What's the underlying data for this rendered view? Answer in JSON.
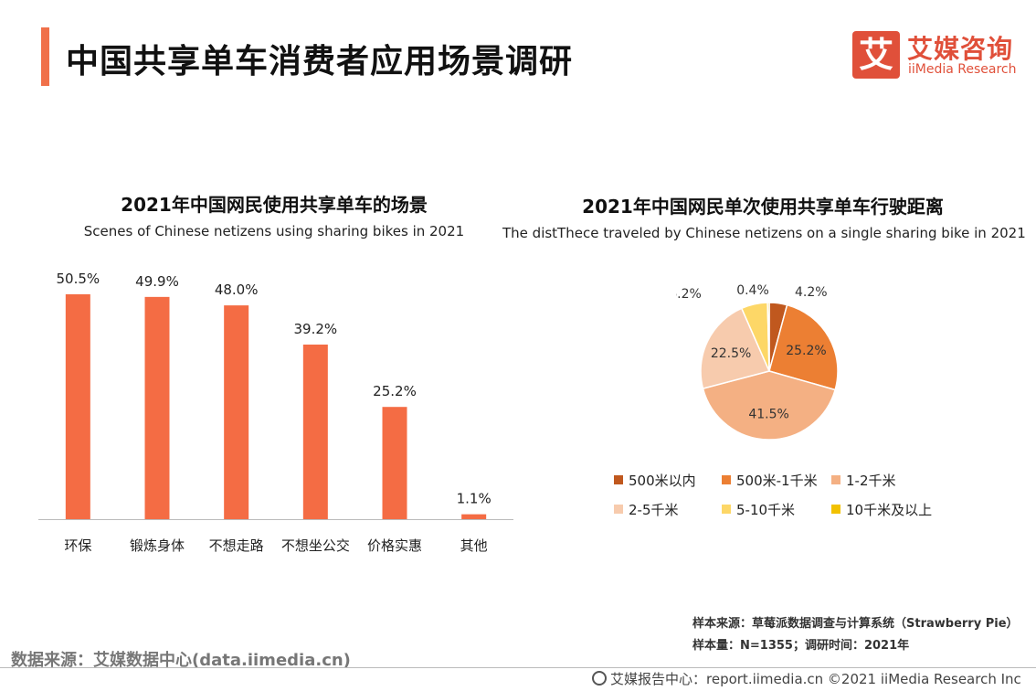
{
  "header": {
    "title": "中国共享单车消费者应用场景调研",
    "logo_mark": "艾",
    "logo_cn": "艾媒咨询",
    "logo_en": "iiMedia Research"
  },
  "colors": {
    "accent": "#f0704a",
    "bar": "#f46c44",
    "brand": "#e0503a"
  },
  "chart_data": [
    {
      "type": "bar",
      "title": "2021年中国网民使用共享单车的场景",
      "subtitle": "Scenes of Chinese netizens using sharing bikes in 2021",
      "categories": [
        "环保",
        "锻炼身体",
        "不想走路",
        "不想坐公交",
        "价格实惠",
        "其他"
      ],
      "values": [
        50.5,
        49.9,
        48.0,
        39.2,
        25.2,
        1.1
      ],
      "value_labels": [
        "50.5%",
        "49.9%",
        "48.0%",
        "39.2%",
        "25.2%",
        "1.1%"
      ],
      "unit": "%",
      "ylim": [
        0,
        55
      ],
      "grid": false,
      "legend": "none"
    },
    {
      "type": "pie",
      "title": "2021年中国网民单次使用共享单车行驶距离",
      "subtitle": "The distThece traveled by Chinese netizens on a single sharing bike in 2021",
      "categories": [
        "500米以内",
        "500米-1千米",
        "1-2千米",
        "2-5千米",
        "5-10千米",
        "10千米及以上"
      ],
      "values": [
        4.2,
        25.2,
        41.5,
        22.5,
        6.2,
        0.4
      ],
      "value_labels": [
        "4.2%",
        "25.2%",
        "41.5%",
        "22.5%",
        "6.2%",
        "0.4%"
      ],
      "colors": [
        "#c0581e",
        "#ec7f33",
        "#f4b083",
        "#f7cbad",
        "#fdd767",
        "#f2c100"
      ],
      "legend": "bottom"
    }
  ],
  "notes": {
    "source_line": "样本来源：草莓派数据调查与计算系统（Strawberry Pie）",
    "sample_line": "样本量：N=1355；调研时间：2021年"
  },
  "footer": {
    "source_left": "数据来源：艾媒数据中心(data.iimedia.cn)",
    "right": "艾媒报告中心：report.iimedia.cn  ©2021  iiMedia Research  Inc"
  }
}
